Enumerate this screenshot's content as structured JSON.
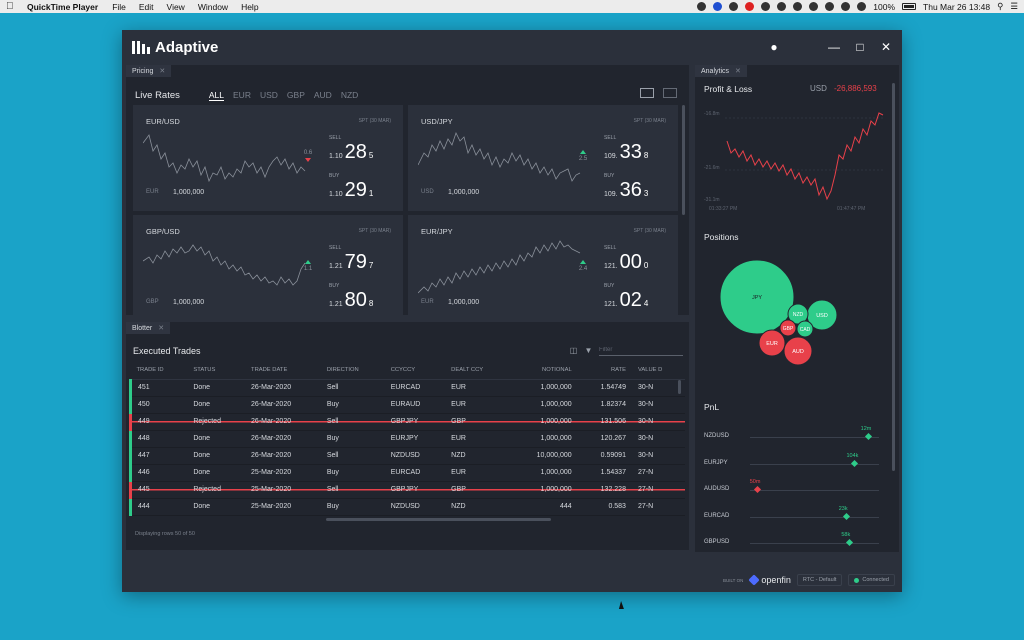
{
  "menubar": {
    "app_name": "QuickTime Player",
    "menus": [
      "File",
      "Edit",
      "View",
      "Window",
      "Help"
    ],
    "battery": "100%",
    "clock": "Thu Mar 26  13:48"
  },
  "window": {
    "brand": "Adaptive"
  },
  "pricing": {
    "tab_label": "Pricing",
    "header": "Live Rates",
    "filters": [
      "ALL",
      "EUR",
      "USD",
      "GBP",
      "AUD",
      "NZD"
    ],
    "tiles": [
      {
        "pair": "EUR/USD",
        "spt": "SPT (30 MAR)",
        "ccy": "EUR",
        "notional": "1,000,000",
        "movement": "0.6",
        "direction": "down",
        "sell": {
          "label": "SELL",
          "big": "1.10",
          "pips": "28",
          "frac": "5"
        },
        "buy": {
          "label": "BUY",
          "big": "1.10",
          "pips": "29",
          "frac": "1"
        }
      },
      {
        "pair": "USD/JPY",
        "spt": "SPT (30 MAR)",
        "ccy": "USD",
        "notional": "1,000,000",
        "movement": "2.5",
        "direction": "up",
        "sell": {
          "label": "SELL",
          "big": "109.",
          "pips": "33",
          "frac": "8"
        },
        "buy": {
          "label": "BUY",
          "big": "109.",
          "pips": "36",
          "frac": "3"
        }
      },
      {
        "pair": "GBP/USD",
        "spt": "SPT (30 MAR)",
        "ccy": "GBP",
        "notional": "1,000,000",
        "movement": "1.1",
        "direction": "up",
        "sell": {
          "label": "SELL",
          "big": "1.21",
          "pips": "79",
          "frac": "7"
        },
        "buy": {
          "label": "BUY",
          "big": "1.21",
          "pips": "80",
          "frac": "8"
        }
      },
      {
        "pair": "EUR/JPY",
        "spt": "SPT (30 MAR)",
        "ccy": "EUR",
        "notional": "1,000,000",
        "movement": "2.4",
        "direction": "up",
        "sell": {
          "label": "SELL",
          "big": "121.",
          "pips": "00",
          "frac": "0"
        },
        "buy": {
          "label": "BUY",
          "big": "121.",
          "pips": "02",
          "frac": "4"
        }
      }
    ]
  },
  "blotter": {
    "tab_label": "Blotter",
    "title": "Executed Trades",
    "filter_placeholder": "Filter",
    "columns": [
      "TRADE ID",
      "STATUS",
      "TRADE DATE",
      "DIRECTION",
      "CCYCCY",
      "DEALT CCY",
      "NOTIONAL",
      "RATE",
      "VALUE D"
    ],
    "rows": [
      [
        "451",
        "Done",
        "26-Mar-2020",
        "Sell",
        "EURCAD",
        "EUR",
        "1,000,000",
        "1.54749",
        "30-N"
      ],
      [
        "450",
        "Done",
        "26-Mar-2020",
        "Buy",
        "EURAUD",
        "EUR",
        "1,000,000",
        "1.82374",
        "30-N"
      ],
      [
        "449",
        "Rejected",
        "26-Mar-2020",
        "Sell",
        "GBPJPY",
        "GBP",
        "1,000,000",
        "131.506",
        "30-N"
      ],
      [
        "448",
        "Done",
        "26-Mar-2020",
        "Buy",
        "EURJPY",
        "EUR",
        "1,000,000",
        "120.267",
        "30-N"
      ],
      [
        "447",
        "Done",
        "26-Mar-2020",
        "Sell",
        "NZDUSD",
        "NZD",
        "10,000,000",
        "0.59091",
        "30-N"
      ],
      [
        "446",
        "Done",
        "25-Mar-2020",
        "Buy",
        "EURCAD",
        "EUR",
        "1,000,000",
        "1.54337",
        "27-N"
      ],
      [
        "445",
        "Rejected",
        "25-Mar-2020",
        "Sell",
        "GBPJPY",
        "GBP",
        "1,000,000",
        "132.228",
        "27-N"
      ],
      [
        "444",
        "Done",
        "25-Mar-2020",
        "Buy",
        "NZDUSD",
        "NZD",
        "444",
        "0.583",
        "27-N"
      ]
    ],
    "footer": "Displaying rows 50 of 50"
  },
  "analytics": {
    "tab_label": "Analytics",
    "pnl_title": "Profit & Loss",
    "pnl_ccy": "USD",
    "pnl_value": "-26,886,593",
    "y_ticks": [
      "-16.8m",
      "-21.6m",
      "-31.1m"
    ],
    "x_ticks": [
      "01:33:27 PM",
      "01:47:47 PM"
    ],
    "positions_title": "Positions",
    "positions": [
      {
        "ccy": "JPY",
        "color": "#2ecc8a"
      },
      {
        "ccy": "NZD",
        "color": "#2ecc8a"
      },
      {
        "ccy": "USD",
        "color": "#2ecc8a"
      },
      {
        "ccy": "CAD",
        "color": "#2ecc8a"
      },
      {
        "ccy": "GBP",
        "color": "#e8414a"
      },
      {
        "ccy": "EUR",
        "color": "#e8414a"
      },
      {
        "ccy": "AUD",
        "color": "#e8414a"
      }
    ],
    "pnl_section_title": "PnL",
    "pnl_rows": [
      {
        "pair": "NZDUSD",
        "amount": "12m",
        "sign": "pos",
        "pos": 0.92
      },
      {
        "pair": "EURJPY",
        "amount": "104k",
        "sign": "pos",
        "pos": 0.81
      },
      {
        "pair": "AUDUSD",
        "amount": "50m",
        "sign": "neg",
        "pos": 0.06
      },
      {
        "pair": "EURCAD",
        "amount": "23k",
        "sign": "pos",
        "pos": 0.75
      },
      {
        "pair": "GBPUSD",
        "amount": "58k",
        "sign": "pos",
        "pos": 0.77
      }
    ]
  },
  "footer": {
    "built_on": "BUILT ON",
    "brand": "openfin",
    "env": "RTC - Default",
    "status": "Connected"
  },
  "colors": {
    "up": "#2ecc8a",
    "down": "#e8414a",
    "bg": "#2b303b",
    "desktop": "#1aa3c8"
  }
}
